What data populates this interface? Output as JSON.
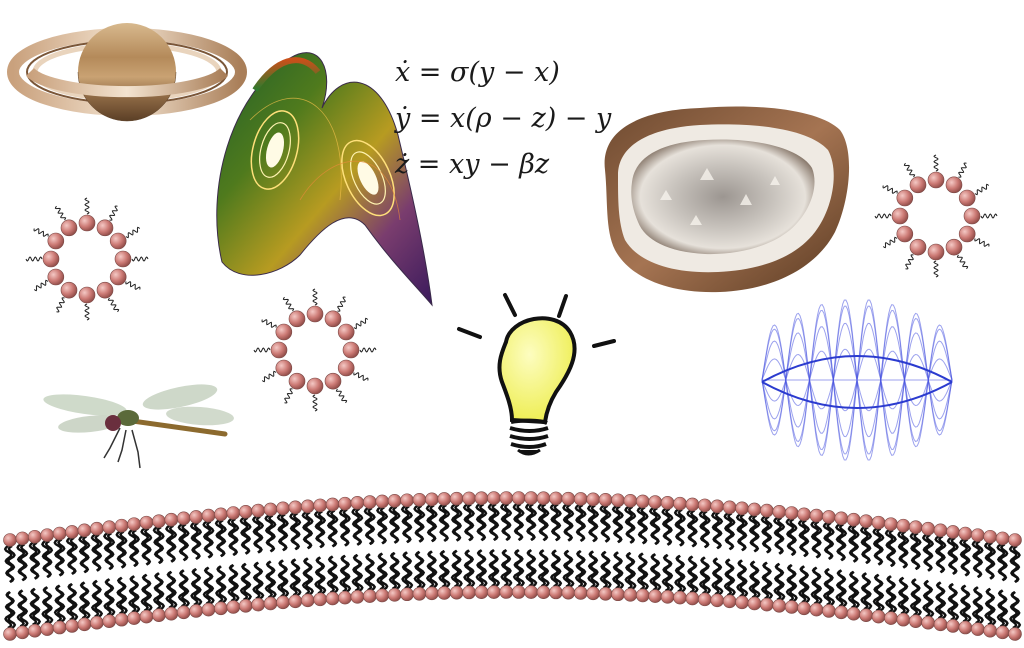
{
  "equations": {
    "eq1": "ẋ = σ(y − x)",
    "eq2": "ẏ = x(ρ − z) − y",
    "eq3": "ż = xy − βz"
  },
  "colors": {
    "lipid_head": "#cd7b76",
    "lipid_tail": "#1a1a1a",
    "bulb_glass": "#f5f56e",
    "wave": "#4a55e0",
    "saturn_body": "#b68b5c",
    "geode_shell": "#8a5a3a"
  },
  "icons": [
    "saturn-icon",
    "strange-attractor-icon",
    "geode-icon",
    "micelle-icon",
    "dragonfly-icon",
    "light-bulb-icon",
    "standing-wave-icon",
    "lipid-bilayer-icon"
  ]
}
